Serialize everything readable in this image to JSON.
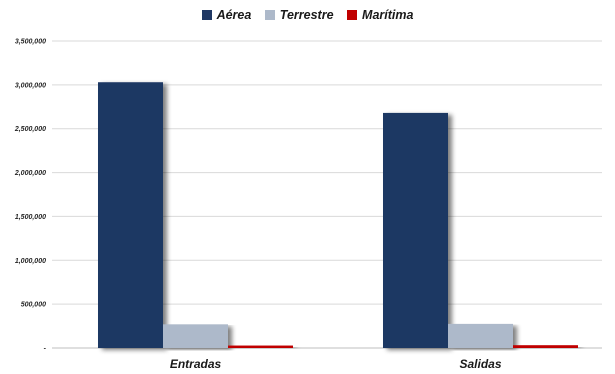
{
  "chart_data": {
    "type": "bar",
    "categories": [
      "Entradas",
      "Salidas"
    ],
    "series": [
      {
        "name": "Aérea",
        "color": "#1f3864",
        "values": [
          3030000,
          2680000
        ]
      },
      {
        "name": "Terrestre",
        "color": "#adb9ca",
        "values": [
          270000,
          275000
        ]
      },
      {
        "name": "Marítima",
        "color": "#c00000",
        "values": [
          28000,
          32000
        ]
      }
    ],
    "title": "",
    "xlabel": "",
    "ylabel": "",
    "ylim": [
      0,
      3500000
    ],
    "yticks": [
      "-",
      "500,000",
      "1,000,000",
      "1,500,000",
      "2,000,000",
      "2,500,000",
      "3,000,000",
      "3,500,000"
    ],
    "legend_position": "top-center",
    "grid": true
  }
}
